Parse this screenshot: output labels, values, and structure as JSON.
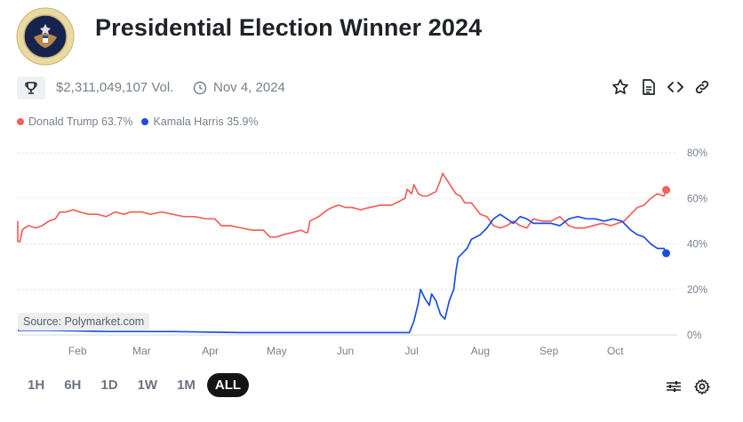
{
  "header": {
    "title": "Presidential Election Winner 2024"
  },
  "meta": {
    "volume": "$2,311,049,107 Vol.",
    "date": "Nov 4, 2024"
  },
  "actions": [
    "star-icon",
    "document-icon",
    "code-icon",
    "link-icon"
  ],
  "legend": [
    {
      "label": "Donald Trump 63.7%",
      "color": "#f0625a"
    },
    {
      "label": "Kamala Harris 35.9%",
      "color": "#1c4fe0"
    }
  ],
  "source_label": "Source: Polymarket.com",
  "ranges": [
    {
      "label": "1H",
      "active": false
    },
    {
      "label": "6H",
      "active": false
    },
    {
      "label": "1D",
      "active": false
    },
    {
      "label": "1W",
      "active": false
    },
    {
      "label": "1M",
      "active": false
    },
    {
      "label": "ALL",
      "active": true
    }
  ],
  "bottom_icons": [
    "sliders-icon",
    "gear-icon"
  ],
  "chart_data": {
    "type": "line",
    "title": "",
    "xlabel": "",
    "ylabel": "",
    "ylim": [
      0,
      80
    ],
    "y_ticks": [
      "0%",
      "20%",
      "40%",
      "60%",
      "80%"
    ],
    "y_tick_values": [
      0,
      20,
      40,
      60,
      80
    ],
    "grid": true,
    "legend_position": "top-left",
    "x_range": [
      "2024-01-05",
      "2024-10-29"
    ],
    "x_ticks": [
      {
        "label": "Feb",
        "date": "2024-02-01"
      },
      {
        "label": "Mar",
        "date": "2024-03-01"
      },
      {
        "label": "Apr",
        "date": "2024-04-01"
      },
      {
        "label": "May",
        "date": "2024-05-01"
      },
      {
        "label": "Jun",
        "date": "2024-06-01"
      },
      {
        "label": "Jul",
        "date": "2024-07-01"
      },
      {
        "label": "Aug",
        "date": "2024-08-01"
      },
      {
        "label": "Sep",
        "date": "2024-09-01"
      },
      {
        "label": "Oct",
        "date": "2024-10-01"
      }
    ],
    "series": [
      {
        "name": "Donald Trump",
        "color": "#f0625a",
        "points": [
          [
            "2024-01-05",
            50
          ],
          [
            "2024-01-05",
            41
          ],
          [
            "2024-01-06",
            41
          ],
          [
            "2024-01-07",
            46
          ],
          [
            "2024-01-08",
            47
          ],
          [
            "2024-01-10",
            48
          ],
          [
            "2024-01-13",
            47
          ],
          [
            "2024-01-16",
            48
          ],
          [
            "2024-01-19",
            50
          ],
          [
            "2024-01-22",
            51
          ],
          [
            "2024-01-24",
            54
          ],
          [
            "2024-01-27",
            54
          ],
          [
            "2024-01-30",
            55
          ],
          [
            "2024-02-02",
            54
          ],
          [
            "2024-02-06",
            53
          ],
          [
            "2024-02-10",
            53
          ],
          [
            "2024-02-14",
            52
          ],
          [
            "2024-02-18",
            54
          ],
          [
            "2024-02-22",
            53
          ],
          [
            "2024-02-25",
            54
          ],
          [
            "2024-03-01",
            54
          ],
          [
            "2024-03-05",
            53
          ],
          [
            "2024-03-10",
            54
          ],
          [
            "2024-03-15",
            53
          ],
          [
            "2024-03-20",
            52
          ],
          [
            "2024-03-25",
            52
          ],
          [
            "2024-03-30",
            51
          ],
          [
            "2024-04-03",
            51
          ],
          [
            "2024-04-06",
            48
          ],
          [
            "2024-04-10",
            48
          ],
          [
            "2024-04-15",
            47
          ],
          [
            "2024-04-20",
            46
          ],
          [
            "2024-04-25",
            46
          ],
          [
            "2024-04-28",
            43
          ],
          [
            "2024-05-01",
            43
          ],
          [
            "2024-05-04",
            44
          ],
          [
            "2024-05-08",
            45
          ],
          [
            "2024-05-12",
            46
          ],
          [
            "2024-05-14",
            45
          ],
          [
            "2024-05-15",
            45
          ],
          [
            "2024-05-16",
            50
          ],
          [
            "2024-05-20",
            52
          ],
          [
            "2024-05-24",
            55
          ],
          [
            "2024-05-26",
            56
          ],
          [
            "2024-05-29",
            57
          ],
          [
            "2024-06-01",
            56
          ],
          [
            "2024-06-04",
            56
          ],
          [
            "2024-06-08",
            55
          ],
          [
            "2024-06-12",
            56
          ],
          [
            "2024-06-17",
            57
          ],
          [
            "2024-06-22",
            57
          ],
          [
            "2024-06-26",
            59
          ],
          [
            "2024-06-28",
            60
          ],
          [
            "2024-06-29",
            64
          ],
          [
            "2024-07-01",
            62
          ],
          [
            "2024-07-02",
            66
          ],
          [
            "2024-07-04",
            62
          ],
          [
            "2024-07-06",
            61
          ],
          [
            "2024-07-08",
            61
          ],
          [
            "2024-07-10",
            62
          ],
          [
            "2024-07-12",
            63
          ],
          [
            "2024-07-14",
            68
          ],
          [
            "2024-07-15",
            71
          ],
          [
            "2024-07-17",
            68
          ],
          [
            "2024-07-19",
            65
          ],
          [
            "2024-07-21",
            62
          ],
          [
            "2024-07-23",
            61
          ],
          [
            "2024-07-25",
            58
          ],
          [
            "2024-07-28",
            58
          ],
          [
            "2024-08-01",
            53
          ],
          [
            "2024-08-04",
            52
          ],
          [
            "2024-08-07",
            48
          ],
          [
            "2024-08-10",
            47
          ],
          [
            "2024-08-13",
            48
          ],
          [
            "2024-08-16",
            50
          ],
          [
            "2024-08-19",
            48
          ],
          [
            "2024-08-22",
            47
          ],
          [
            "2024-08-25",
            51
          ],
          [
            "2024-08-29",
            50
          ],
          [
            "2024-09-02",
            50
          ],
          [
            "2024-09-06",
            52
          ],
          [
            "2024-09-10",
            48
          ],
          [
            "2024-09-13",
            47
          ],
          [
            "2024-09-17",
            47
          ],
          [
            "2024-09-21",
            48
          ],
          [
            "2024-09-25",
            49
          ],
          [
            "2024-09-29",
            48
          ],
          [
            "2024-10-02",
            49
          ],
          [
            "2024-10-05",
            50
          ],
          [
            "2024-10-08",
            53
          ],
          [
            "2024-10-11",
            56
          ],
          [
            "2024-10-14",
            57
          ],
          [
            "2024-10-17",
            60
          ],
          [
            "2024-10-20",
            62
          ],
          [
            "2024-10-23",
            61
          ],
          [
            "2024-10-24",
            63.7
          ]
        ]
      },
      {
        "name": "Kamala Harris",
        "color": "#1c4fe0",
        "points": [
          [
            "2024-01-05",
            2
          ],
          [
            "2024-01-20",
            2
          ],
          [
            "2024-02-15",
            1.5
          ],
          [
            "2024-03-15",
            1.5
          ],
          [
            "2024-04-15",
            1
          ],
          [
            "2024-05-15",
            1
          ],
          [
            "2024-06-15",
            1
          ],
          [
            "2024-06-30",
            1
          ],
          [
            "2024-07-02",
            6
          ],
          [
            "2024-07-04",
            14
          ],
          [
            "2024-07-05",
            20
          ],
          [
            "2024-07-07",
            16
          ],
          [
            "2024-07-09",
            13
          ],
          [
            "2024-07-10",
            18
          ],
          [
            "2024-07-12",
            15
          ],
          [
            "2024-07-14",
            9
          ],
          [
            "2024-07-16",
            7
          ],
          [
            "2024-07-18",
            15
          ],
          [
            "2024-07-20",
            20
          ],
          [
            "2024-07-21",
            28
          ],
          [
            "2024-07-22",
            34
          ],
          [
            "2024-07-24",
            36
          ],
          [
            "2024-07-26",
            38
          ],
          [
            "2024-07-28",
            42
          ],
          [
            "2024-08-01",
            44
          ],
          [
            "2024-08-04",
            47
          ],
          [
            "2024-08-07",
            51
          ],
          [
            "2024-08-10",
            53
          ],
          [
            "2024-08-13",
            51
          ],
          [
            "2024-08-16",
            49
          ],
          [
            "2024-08-19",
            52
          ],
          [
            "2024-08-22",
            51
          ],
          [
            "2024-08-25",
            49
          ],
          [
            "2024-08-29",
            49
          ],
          [
            "2024-09-02",
            49
          ],
          [
            "2024-09-06",
            48
          ],
          [
            "2024-09-10",
            51
          ],
          [
            "2024-09-14",
            52
          ],
          [
            "2024-09-18",
            51
          ],
          [
            "2024-09-22",
            51
          ],
          [
            "2024-09-26",
            50
          ],
          [
            "2024-09-30",
            51
          ],
          [
            "2024-10-04",
            50
          ],
          [
            "2024-10-08",
            46
          ],
          [
            "2024-10-11",
            44
          ],
          [
            "2024-10-14",
            43
          ],
          [
            "2024-10-17",
            40
          ],
          [
            "2024-10-20",
            38
          ],
          [
            "2024-10-23",
            38
          ],
          [
            "2024-10-24",
            35.9
          ]
        ]
      }
    ]
  }
}
